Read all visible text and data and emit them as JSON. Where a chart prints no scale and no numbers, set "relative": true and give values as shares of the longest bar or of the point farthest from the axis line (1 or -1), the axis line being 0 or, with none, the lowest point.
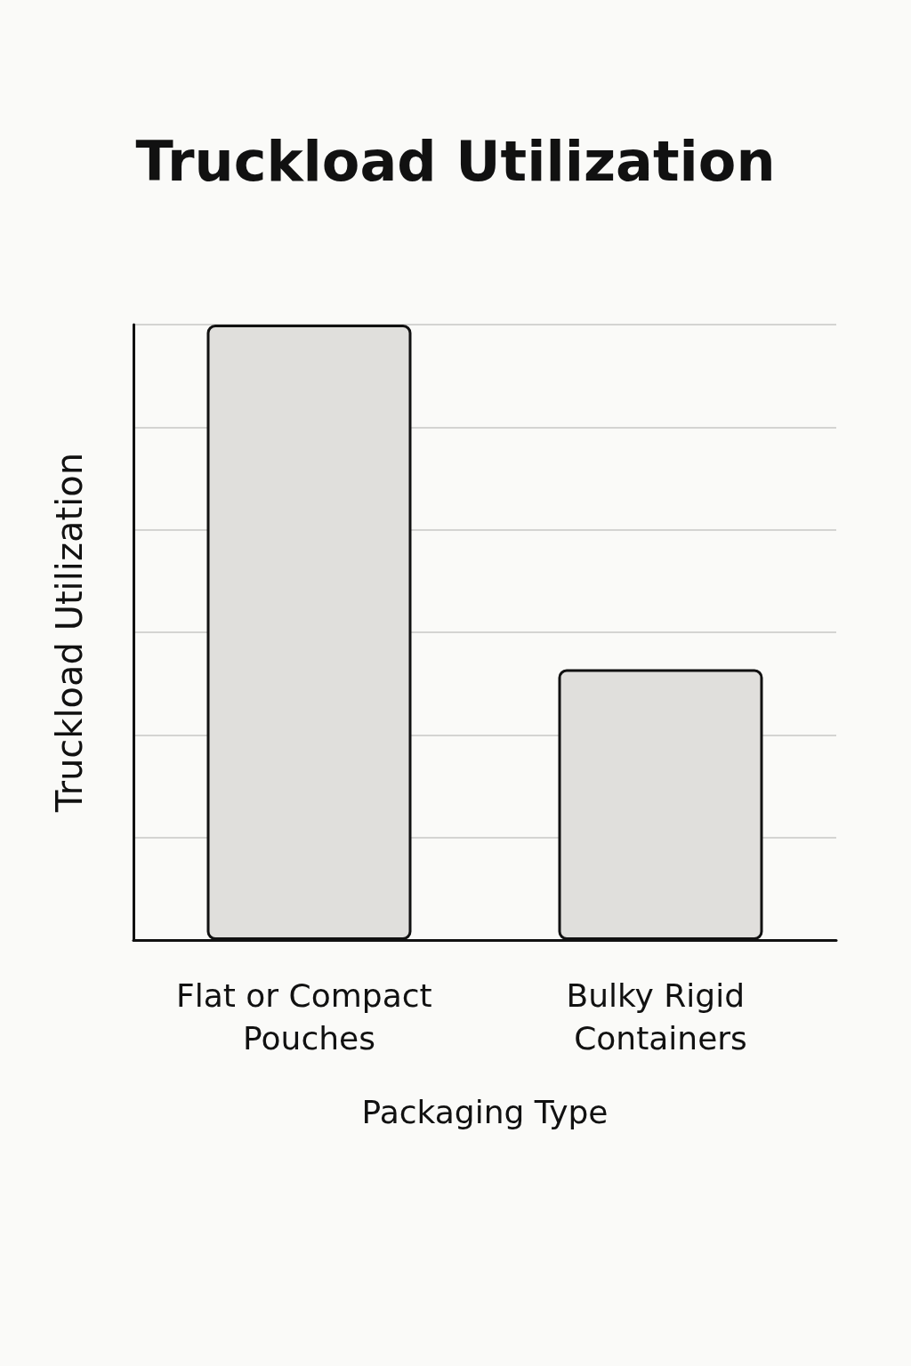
{
  "chart_data": {
    "type": "bar",
    "title": "Truckload Utilization",
    "xlabel": "Packaging Type",
    "ylabel": "Truckload Utilization",
    "categories": [
      "Flat or Compact Pouches",
      "Bulky Rigid Containers"
    ],
    "values": [
      1,
      0.44
    ],
    "color": "#e0dfdc",
    "relative": true,
    "grid": "y"
  }
}
